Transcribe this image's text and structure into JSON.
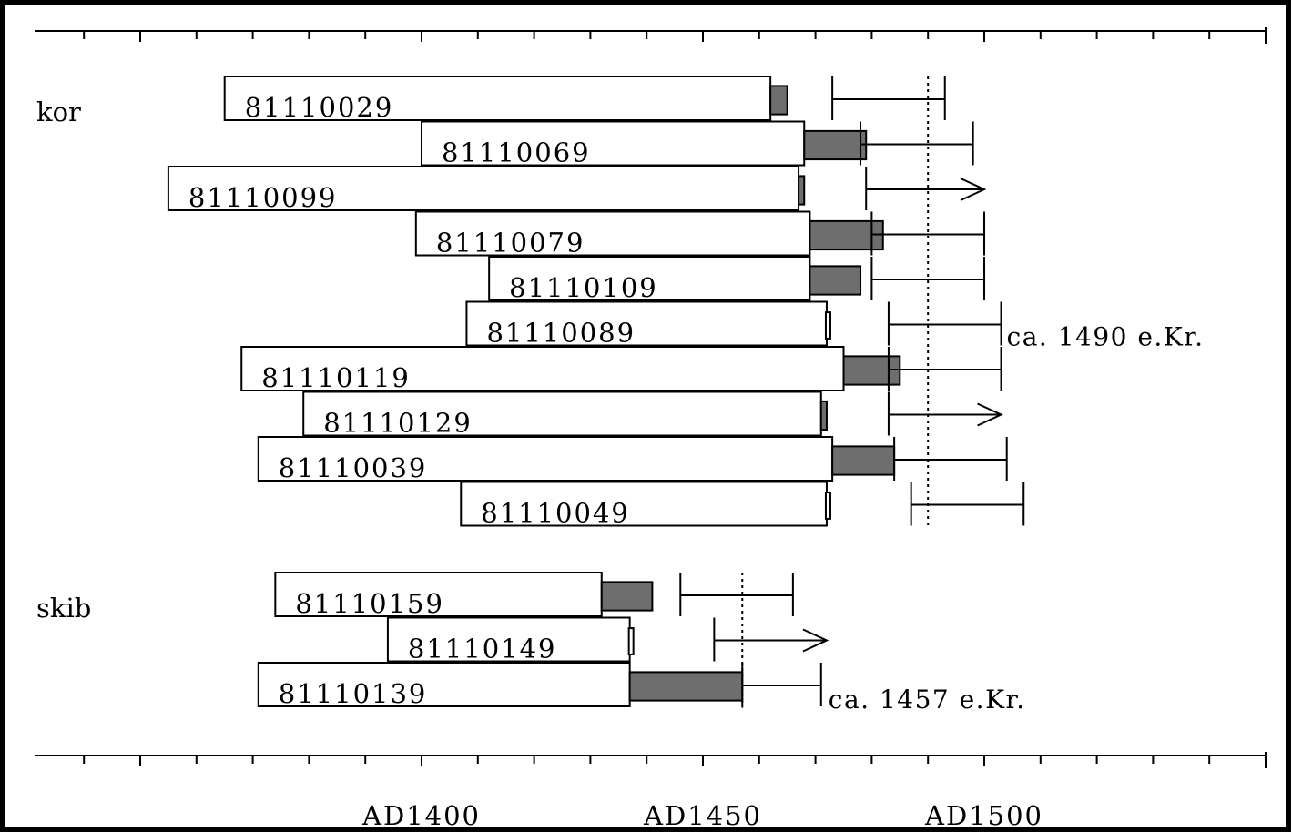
{
  "chart_data": {
    "type": "bar",
    "x_unit": "year AD",
    "xlim": [
      1355,
      1560
    ],
    "x_ticks": [
      1400,
      1450,
      1500
    ],
    "x_tick_labels": [
      "AD1400",
      "AD1450",
      "AD1500"
    ],
    "groups": [
      {
        "name": "kor",
        "felling_line": 1490,
        "annotation": "ca. 1490 e.Kr.",
        "samples": [
          {
            "id": "81110029",
            "start": 1365,
            "end": 1462,
            "sapwood_end": 1465,
            "fell_from": 1473,
            "fell_to": 1493,
            "open": false
          },
          {
            "id": "81110069",
            "start": 1400,
            "end": 1468,
            "sapwood_end": 1479,
            "fell_from": 1478,
            "fell_to": 1498,
            "open": false
          },
          {
            "id": "81110099",
            "start": 1355,
            "end": 1467,
            "sapwood_end": 1468,
            "fell_from": 1479,
            "fell_to": 1500,
            "open": true
          },
          {
            "id": "81110079",
            "start": 1399,
            "end": 1469,
            "sapwood_end": 1482,
            "fell_from": 1480,
            "fell_to": 1500,
            "open": false
          },
          {
            "id": "81110109",
            "start": 1412,
            "end": 1469,
            "sapwood_end": 1478,
            "fell_from": 1480,
            "fell_to": 1500,
            "open": false
          },
          {
            "id": "81110089",
            "start": 1408,
            "end": 1472,
            "sapwood_end": 1472,
            "fell_from": 1483,
            "fell_to": 1503,
            "open": false
          },
          {
            "id": "81110119",
            "start": 1368,
            "end": 1475,
            "sapwood_end": 1485,
            "fell_from": 1483,
            "fell_to": 1503,
            "open": false
          },
          {
            "id": "81110129",
            "start": 1379,
            "end": 1471,
            "sapwood_end": 1472,
            "fell_from": 1483,
            "fell_to": 1503,
            "open": true
          },
          {
            "id": "81110039",
            "start": 1371,
            "end": 1473,
            "sapwood_end": 1484,
            "fell_from": 1484,
            "fell_to": 1504,
            "open": false
          },
          {
            "id": "81110049",
            "start": 1407,
            "end": 1472,
            "sapwood_end": 1472,
            "fell_from": 1487,
            "fell_to": 1507,
            "open": false
          }
        ]
      },
      {
        "name": "skib",
        "felling_line": 1457,
        "annotation": "ca. 1457 e.Kr.",
        "samples": [
          {
            "id": "81110159",
            "start": 1374,
            "end": 1432,
            "sapwood_end": 1441,
            "fell_from": 1446,
            "fell_to": 1466,
            "open": false
          },
          {
            "id": "81110149",
            "start": 1394,
            "end": 1437,
            "sapwood_end": 1437,
            "fell_from": 1452,
            "fell_to": 1472,
            "open": true
          },
          {
            "id": "81110139",
            "start": 1371,
            "end": 1437,
            "sapwood_end": 1457,
            "fell_from": 1457,
            "fell_to": 1471,
            "open": false
          }
        ]
      }
    ],
    "colors": {
      "heartwood": "#ffffff",
      "sapwood": "#6e6e6e",
      "outline": "#000000"
    }
  }
}
